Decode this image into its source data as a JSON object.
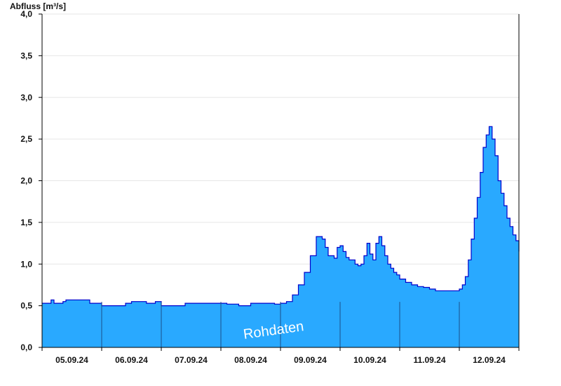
{
  "chart_data": {
    "type": "area",
    "ylabel": "Abfluss [m³/s]",
    "ylim": [
      0,
      4.0
    ],
    "yticks": [
      0.0,
      0.5,
      1.0,
      1.5,
      2.0,
      2.5,
      3.0,
      3.5,
      4.0
    ],
    "yticklabels": [
      "0,0",
      "0,5",
      "1,0",
      "1,5",
      "2,0",
      "2,5",
      "3,0",
      "3,5",
      "4,0"
    ],
    "xlim": [
      0,
      8
    ],
    "day_boundaries": [
      1,
      2,
      3,
      4,
      5,
      6,
      7
    ],
    "xticklabels": [
      "05.09.24",
      "06.09.24",
      "07.09.24",
      "08.09.24",
      "09.09.24",
      "10.09.24",
      "11.09.24",
      "12.09.24"
    ],
    "watermark": "Rohdaten",
    "grid": true,
    "colors": {
      "fill": "#29a9ff",
      "line": "#0000cc",
      "grid": "#e6e6e6",
      "axis": "#000000",
      "divider": "#1a4f8a"
    },
    "series": [
      {
        "x": [
          0.0,
          0.1,
          0.15,
          0.2,
          0.35,
          0.4,
          0.45,
          0.7,
          0.8,
          0.9,
          1.0,
          1.1,
          1.3,
          1.4,
          1.5,
          1.6,
          1.75,
          1.9,
          2.0,
          2.1,
          2.3,
          2.4,
          2.6,
          2.8,
          3.0,
          3.1,
          3.3,
          3.5,
          3.7,
          3.9,
          4.0,
          4.1,
          4.2,
          4.3,
          4.4,
          4.5,
          4.6,
          4.65,
          4.7,
          4.75,
          4.8,
          4.9,
          4.95,
          5.0,
          5.05,
          5.1,
          5.15,
          5.2,
          5.25,
          5.3,
          5.35,
          5.4,
          5.45,
          5.5,
          5.55,
          5.6,
          5.65,
          5.7,
          5.75,
          5.8,
          5.85,
          5.9,
          5.95,
          6.0,
          6.1,
          6.2,
          6.3,
          6.4,
          6.5,
          6.6,
          6.7,
          6.8,
          6.9,
          7.0,
          7.05,
          7.1,
          7.15,
          7.2,
          7.25,
          7.3,
          7.35,
          7.4,
          7.45,
          7.5,
          7.55,
          7.6,
          7.65,
          7.7,
          7.75,
          7.8,
          7.85,
          7.9,
          7.95,
          8.0
        ],
        "y": [
          0.53,
          0.53,
          0.57,
          0.53,
          0.55,
          0.57,
          0.57,
          0.57,
          0.53,
          0.53,
          0.5,
          0.5,
          0.5,
          0.53,
          0.55,
          0.55,
          0.53,
          0.55,
          0.5,
          0.5,
          0.5,
          0.53,
          0.53,
          0.53,
          0.53,
          0.52,
          0.5,
          0.53,
          0.53,
          0.52,
          0.53,
          0.55,
          0.63,
          0.75,
          0.9,
          1.1,
          1.33,
          1.33,
          1.3,
          1.2,
          1.1,
          1.07,
          1.2,
          1.22,
          1.15,
          1.08,
          1.05,
          1.05,
          1.0,
          0.98,
          1.0,
          1.1,
          1.25,
          1.12,
          1.05,
          1.25,
          1.33,
          1.22,
          1.1,
          1.0,
          0.95,
          0.9,
          0.87,
          0.82,
          0.78,
          0.75,
          0.73,
          0.72,
          0.7,
          0.68,
          0.68,
          0.68,
          0.68,
          0.7,
          0.75,
          0.85,
          1.05,
          1.3,
          1.55,
          1.8,
          2.1,
          2.4,
          2.55,
          2.65,
          2.5,
          2.3,
          2.0,
          1.85,
          1.7,
          1.55,
          1.45,
          1.35,
          1.28,
          1.15
        ]
      }
    ]
  }
}
